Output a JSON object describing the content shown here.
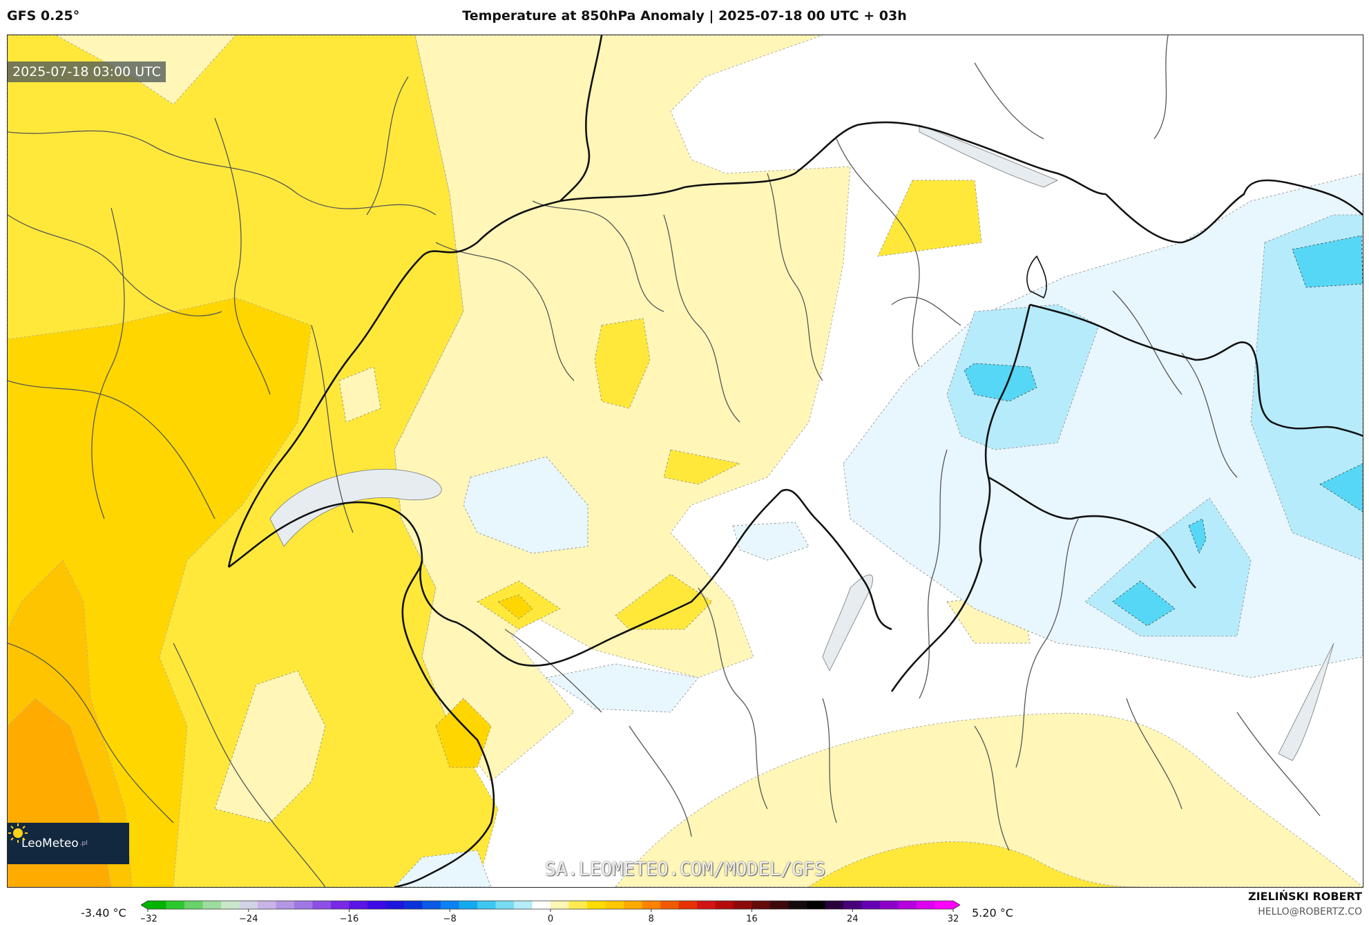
{
  "header": {
    "model": "GFS 0.25°",
    "title": "Temperature at 850hPa Anomaly | 2025-07-18 00 UTC + 03h"
  },
  "map": {
    "valid_time": "2025-07-18 03:00 UTC",
    "watermark": "SA.LEOMETEO.COM/MODEL/GFS",
    "logo": {
      "name": "LeoMeteo",
      "suffix": ".pl",
      "icon": "sun-icon"
    }
  },
  "legend": {
    "min_label": "-3.40 °C",
    "max_label": "5.20 °C",
    "ticks": [
      "−32",
      "−24",
      "−16",
      "−8",
      "0",
      "8",
      "16",
      "24",
      "32"
    ],
    "colors": [
      "#00b400",
      "#2ec82e",
      "#6ad26a",
      "#9cdc9c",
      "#c8e6c8",
      "#d2d2e6",
      "#c8b4e6",
      "#b496e6",
      "#a078e6",
      "#8c50e6",
      "#7828e6",
      "#5a14e6",
      "#3c0ae6",
      "#1e14dc",
      "#0a32dc",
      "#0a5ae6",
      "#0a82f0",
      "#14aaf0",
      "#3cc8f0",
      "#78dcf0",
      "#b4ecf8",
      "#ffffff",
      "#fff5b4",
      "#ffeb50",
      "#ffdc00",
      "#ffc800",
      "#ffaa00",
      "#ff8200",
      "#f05a00",
      "#e63200",
      "#d21414",
      "#b40a0a",
      "#8c0a0a",
      "#640a0a",
      "#3c0a0a",
      "#140a0a",
      "#000000",
      "#28003c",
      "#460078",
      "#6400b4",
      "#8c00c8",
      "#b400dc",
      "#dc00f0",
      "#ff00ff"
    ]
  },
  "credits": {
    "author": "ZIELIŃSKI ROBERT",
    "email": "HELLO@ROBERTZ.CO"
  }
}
